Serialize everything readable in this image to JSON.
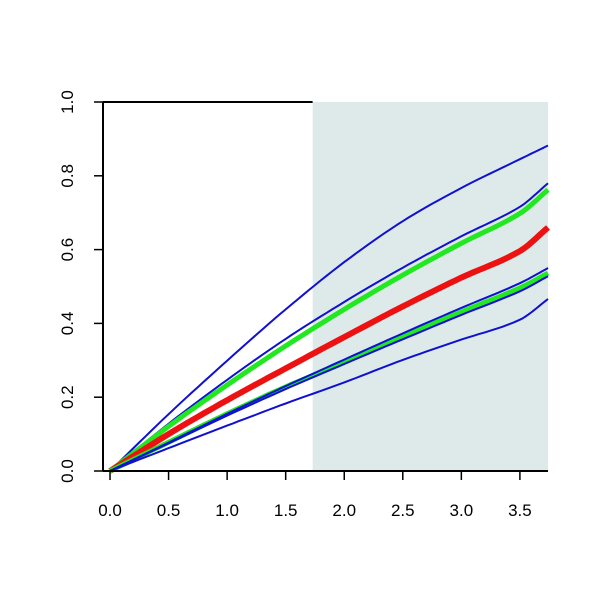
{
  "chart_data": {
    "type": "line",
    "title": "",
    "xlabel": "",
    "ylabel": "",
    "xlim": [
      -0.06,
      3.74
    ],
    "ylim": [
      0,
      1.0
    ],
    "grid": false,
    "x_ticks": [
      "0.0",
      "0.5",
      "1.0",
      "1.5",
      "2.0",
      "2.5",
      "3.0",
      "3.5"
    ],
    "y_ticks": [
      "0.0",
      "0.2",
      "0.4",
      "0.6",
      "0.8",
      "1.0"
    ],
    "shaded_region": {
      "x_start": 1.73,
      "x_end": 3.74,
      "color": "#deeaea"
    },
    "series": [
      {
        "color": "#1010d0",
        "width": 2,
        "x": [
          0,
          0.5,
          1.0,
          1.5,
          2.0,
          2.5,
          3.0,
          3.5,
          3.74
        ],
        "y": [
          0,
          0.154,
          0.299,
          0.438,
          0.566,
          0.677,
          0.767,
          0.845,
          0.882
        ]
      },
      {
        "color": "#1010d0",
        "width": 2,
        "x": [
          0,
          0.5,
          1.0,
          1.5,
          2.0,
          2.5,
          3.0,
          3.5,
          3.74
        ],
        "y": [
          0,
          0.128,
          0.247,
          0.358,
          0.458,
          0.551,
          0.636,
          0.716,
          0.78
        ]
      },
      {
        "color": "#22e822",
        "width": 5,
        "x": [
          0,
          0.5,
          1.0,
          1.5,
          2.0,
          2.5,
          3.0,
          3.5,
          3.74
        ],
        "y": [
          0,
          0.121,
          0.233,
          0.339,
          0.438,
          0.531,
          0.617,
          0.698,
          0.762
        ]
      },
      {
        "color": "#ee1111",
        "width": 6,
        "x": [
          0,
          0.5,
          1.0,
          1.5,
          2.0,
          2.5,
          3.0,
          3.5,
          3.74
        ],
        "y": [
          0,
          0.1,
          0.192,
          0.278,
          0.363,
          0.446,
          0.524,
          0.596,
          0.66
        ]
      },
      {
        "color": "#22e822",
        "width": 5,
        "x": [
          0,
          0.5,
          1.0,
          1.5,
          2.0,
          2.5,
          3.0,
          3.5,
          3.74
        ],
        "y": [
          0,
          0.078,
          0.155,
          0.228,
          0.294,
          0.364,
          0.431,
          0.496,
          0.536
        ]
      },
      {
        "color": "#1010d0",
        "width": 2,
        "x": [
          0,
          0.5,
          1.0,
          1.5,
          2.0,
          2.5,
          3.0,
          3.5,
          3.74
        ],
        "y": [
          0,
          0.077,
          0.155,
          0.23,
          0.302,
          0.373,
          0.442,
          0.509,
          0.55
        ]
      },
      {
        "color": "#1010d0",
        "width": 2,
        "x": [
          0,
          0.5,
          1.0,
          1.5,
          2.0,
          2.5,
          3.0,
          3.5,
          3.74
        ],
        "y": [
          0,
          0.075,
          0.15,
          0.222,
          0.29,
          0.357,
          0.423,
          0.487,
          0.528
        ]
      },
      {
        "color": "#1010d0",
        "width": 2,
        "x": [
          0,
          0.5,
          1.0,
          1.5,
          2.0,
          2.5,
          3.0,
          3.5,
          3.74
        ],
        "y": [
          0,
          0.062,
          0.123,
          0.183,
          0.24,
          0.301,
          0.356,
          0.41,
          0.466
        ]
      }
    ]
  }
}
